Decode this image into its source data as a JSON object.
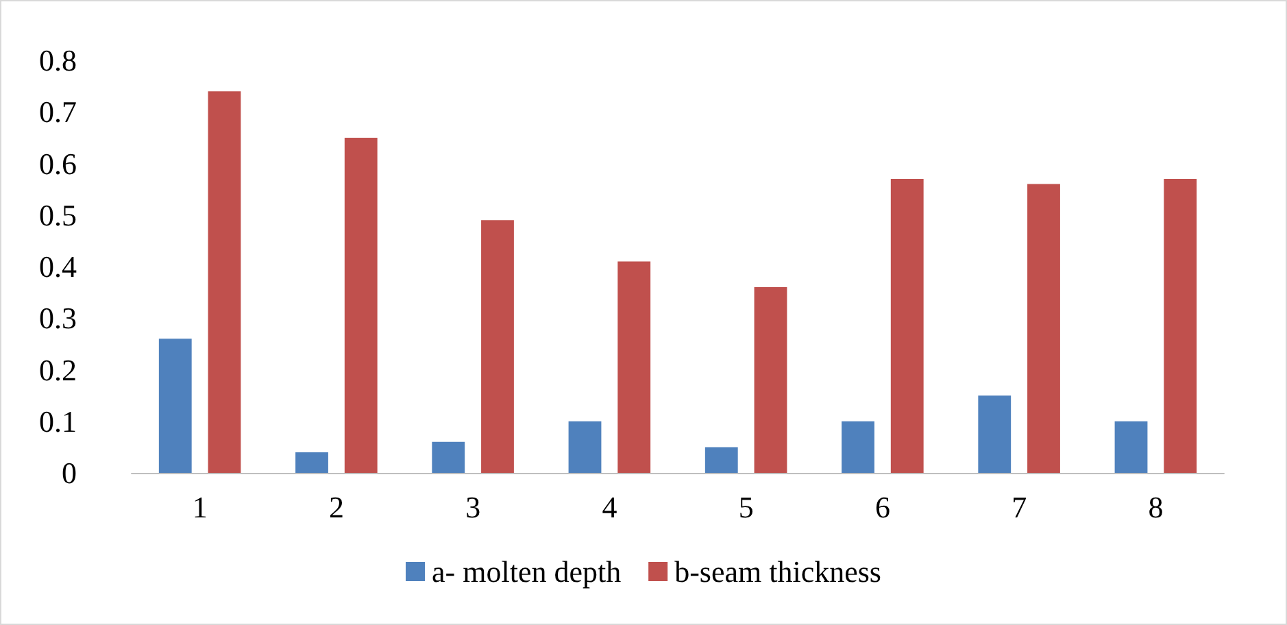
{
  "chart_data": {
    "type": "bar",
    "categories": [
      "1",
      "2",
      "3",
      "4",
      "5",
      "6",
      "7",
      "8"
    ],
    "series": [
      {
        "name": "a- molten depth",
        "color": "#4f81bd",
        "values": [
          0.26,
          0.04,
          0.06,
          0.1,
          0.05,
          0.1,
          0.15,
          0.1
        ]
      },
      {
        "name": "b-seam thickness",
        "color": "#c0504d",
        "values": [
          0.74,
          0.65,
          0.49,
          0.41,
          0.36,
          0.57,
          0.56,
          0.57
        ]
      }
    ],
    "ylim": [
      0,
      0.8
    ],
    "yticks": [
      0,
      0.1,
      0.2,
      0.3,
      0.4,
      0.5,
      0.6,
      0.7,
      0.8
    ],
    "grid": false,
    "legend": "bottom"
  }
}
